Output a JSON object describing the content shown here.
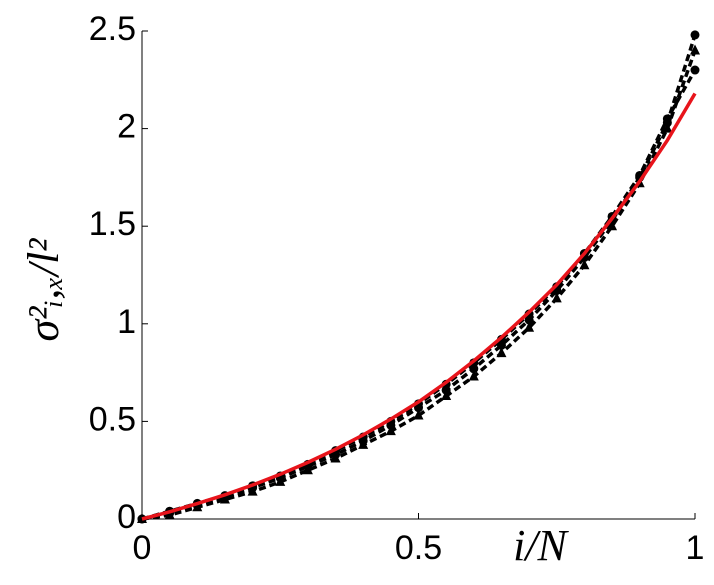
{
  "chart_data": {
    "type": "line",
    "xlabel": "i/N",
    "ylabel": "σ²ᵢ,ₓ/l²",
    "x": [
      0,
      0.05,
      0.1,
      0.15,
      0.2,
      0.25,
      0.3,
      0.35,
      0.4,
      0.45,
      0.5,
      0.55,
      0.6,
      0.65,
      0.7,
      0.75,
      0.8,
      0.85,
      0.9,
      0.95,
      1
    ],
    "series": [
      {
        "color": "#000000",
        "style": "dashed",
        "marker": "circle",
        "values": [
          0,
          0.03,
          0.07,
          0.11,
          0.16,
          0.21,
          0.27,
          0.33,
          0.4,
          0.48,
          0.57,
          0.66,
          0.77,
          0.89,
          1.02,
          1.17,
          1.34,
          1.53,
          1.75,
          2.03,
          2.48
        ]
      },
      {
        "color": "#000000",
        "style": "dashed",
        "marker": "triangle",
        "values": [
          0,
          0.02,
          0.06,
          0.1,
          0.14,
          0.19,
          0.25,
          0.31,
          0.38,
          0.45,
          0.53,
          0.63,
          0.73,
          0.85,
          0.98,
          1.13,
          1.3,
          1.5,
          1.72,
          2.0,
          2.4
        ]
      },
      {
        "color": "#000000",
        "style": "dashed",
        "marker": "circle",
        "values": [
          0,
          0.04,
          0.08,
          0.12,
          0.17,
          0.22,
          0.28,
          0.35,
          0.42,
          0.5,
          0.59,
          0.69,
          0.8,
          0.92,
          1.05,
          1.19,
          1.36,
          1.55,
          1.76,
          2.05,
          2.3
        ]
      },
      {
        "color": "#e8141b",
        "style": "solid",
        "values": [
          0,
          0.037,
          0.079,
          0.124,
          0.174,
          0.229,
          0.29,
          0.357,
          0.431,
          0.512,
          0.6,
          0.7,
          0.81,
          0.93,
          1.06,
          1.2,
          1.36,
          1.54,
          1.73,
          1.94,
          2.18
        ]
      }
    ],
    "xlim": [
      0,
      1
    ],
    "xticks": [
      0,
      0.5,
      1
    ],
    "ylim": [
      0,
      2.5
    ],
    "yticks": [
      0,
      0.5,
      1,
      1.5,
      2,
      2.5
    ]
  }
}
